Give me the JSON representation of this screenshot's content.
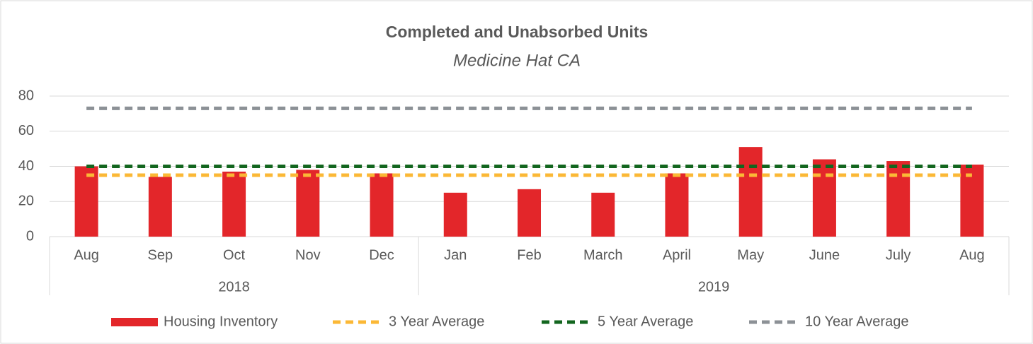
{
  "chart_data": {
    "type": "bar",
    "title": "Completed and Unabsorbed Units",
    "subtitle": "Medicine Hat CA",
    "groups": [
      {
        "label": "2018",
        "categories": [
          "Aug",
          "Sep",
          "Oct",
          "Nov",
          "Dec"
        ]
      },
      {
        "label": "2019",
        "categories": [
          "Jan",
          "Feb",
          "March",
          "April",
          "May",
          "June",
          "July",
          "Aug"
        ]
      }
    ],
    "series": [
      {
        "name": "Housing Inventory",
        "color": "#e3262a",
        "kind": "bar",
        "values": [
          40,
          34,
          37,
          38,
          36,
          25,
          27,
          25,
          36,
          51,
          44,
          43,
          41
        ]
      },
      {
        "name": "3 Year Average",
        "color": "#fbb836",
        "kind": "dashed-line",
        "values": [
          35,
          35,
          35,
          35,
          35,
          35,
          35,
          35,
          35,
          35,
          35,
          35,
          35
        ]
      },
      {
        "name": "5 Year Average",
        "color": "#13661f",
        "kind": "dashed-line",
        "values": [
          40,
          40,
          40,
          40,
          40,
          40,
          40,
          40,
          40,
          40,
          40,
          40,
          40
        ]
      },
      {
        "name": "10 Year Average",
        "color": "#8c9196",
        "kind": "dashed-line",
        "values": [
          73,
          73,
          73,
          73,
          73,
          73,
          73,
          73,
          73,
          73,
          73,
          73,
          73
        ]
      }
    ],
    "ylim": [
      0,
      80
    ],
    "yticks": [
      0,
      20,
      40,
      60,
      80
    ],
    "grid": true,
    "legend": "bottom"
  }
}
